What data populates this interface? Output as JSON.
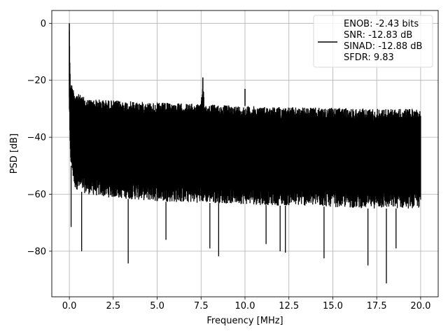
{
  "chart_data": {
    "type": "line",
    "title": "",
    "xlabel": "Frequency [MHz]",
    "ylabel": "PSD [dB]",
    "xlim": [
      -1.0,
      21.0
    ],
    "ylim": [
      -96.0,
      4.5
    ],
    "x_ticks": [
      0.0,
      2.5,
      5.0,
      7.5,
      10.0,
      12.5,
      15.0,
      17.5,
      20.0
    ],
    "x_tick_labels": [
      "0.0",
      "2.5",
      "5.0",
      "7.5",
      "10.0",
      "12.5",
      "15.0",
      "17.5",
      "20.0"
    ],
    "y_ticks": [
      0,
      -20,
      -40,
      -60,
      -80
    ],
    "y_tick_labels": [
      "0",
      "−20",
      "−40",
      "−60",
      "−80"
    ],
    "grid": true,
    "legend_position": "top-right",
    "legend_lines": [
      "ENOB: -2.43 bits",
      "SNR: -12.83 dB",
      "SINAD: -12.88 dB",
      "SFDR: 9.83"
    ],
    "line_color": "#000000",
    "series": [
      {
        "name": "",
        "x": [
          0.0,
          0.05,
          0.3,
          1.0,
          2.0,
          3.0,
          4.0,
          5.0,
          6.0,
          7.0,
          7.5,
          7.6,
          7.7,
          8.5,
          10.0,
          11.0,
          12.0,
          13.0,
          14.0,
          15.0,
          16.0,
          17.0,
          18.0,
          19.0,
          20.0
        ],
        "upper": [
          0.0,
          -20.0,
          -24.0,
          -26.5,
          -26.8,
          -27.2,
          -27.5,
          -27.8,
          -28.0,
          -28.2,
          -28.3,
          -19.0,
          -28.3,
          -28.6,
          -29.0,
          -29.2,
          -29.3,
          -29.5,
          -29.6,
          -29.7,
          -29.8,
          -29.9,
          -30.0,
          -30.0,
          -30.0
        ],
        "lower": [
          -32.0,
          -48.0,
          -58.0,
          -60.0,
          -61.0,
          -61.5,
          -62.0,
          -62.5,
          -62.8,
          -63.0,
          -63.0,
          -63.0,
          -63.0,
          -63.2,
          -63.5,
          -63.8,
          -64.0,
          -64.0,
          -64.2,
          -64.5,
          -64.8,
          -65.0,
          -65.0,
          -65.0,
          -65.0
        ],
        "peaks": [
          {
            "x": 0.0,
            "y": 0.0
          },
          {
            "x": 7.6,
            "y": -19.0
          },
          {
            "x": 10.0,
            "y": -23.0
          }
        ],
        "dips": [
          {
            "x": 0.1,
            "y": -71.5
          },
          {
            "x": 0.7,
            "y": -80.0
          },
          {
            "x": 3.35,
            "y": -84.3
          },
          {
            "x": 5.5,
            "y": -76.0
          },
          {
            "x": 8.0,
            "y": -79.0
          },
          {
            "x": 8.5,
            "y": -81.8
          },
          {
            "x": 11.2,
            "y": -77.5
          },
          {
            "x": 12.0,
            "y": -80.0
          },
          {
            "x": 12.3,
            "y": -80.5
          },
          {
            "x": 14.5,
            "y": -82.5
          },
          {
            "x": 17.0,
            "y": -85.0
          },
          {
            "x": 18.05,
            "y": -91.3
          },
          {
            "x": 18.6,
            "y": -79.0
          }
        ]
      }
    ]
  }
}
